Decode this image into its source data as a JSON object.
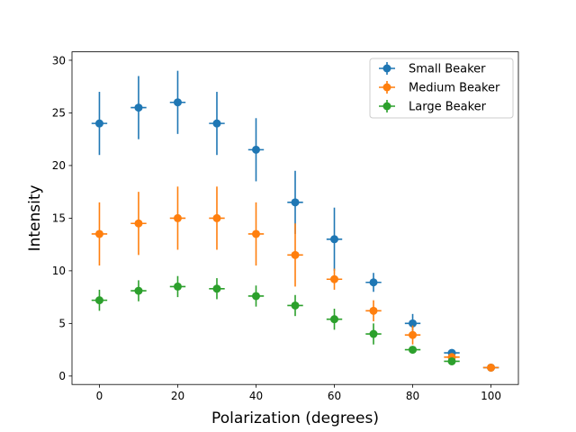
{
  "chart_data": {
    "type": "scatter",
    "xlabel": "Polarization (degrees)",
    "ylabel": "Intensity",
    "xlim": [
      -7,
      107
    ],
    "ylim": [
      -0.8,
      30.8
    ],
    "xticks": [
      0,
      20,
      40,
      60,
      80,
      100
    ],
    "yticks": [
      0,
      5,
      10,
      15,
      20,
      25,
      30
    ],
    "grid": false,
    "legend_position": "top-right",
    "x_error": 2,
    "series": [
      {
        "name": "Small Beaker",
        "color": "#1f77b4",
        "x": [
          0,
          10,
          20,
          30,
          40,
          50,
          60,
          70,
          80,
          90,
          100
        ],
        "y": [
          24,
          25.5,
          26,
          24,
          21.5,
          16.5,
          13,
          8.9,
          5,
          2.2,
          0.8
        ],
        "yerr": [
          3,
          3,
          3,
          3,
          3,
          3,
          3,
          0.9,
          0.9,
          0.2,
          0.1
        ]
      },
      {
        "name": "Medium Beaker",
        "color": "#ff7f0e",
        "x": [
          0,
          10,
          20,
          30,
          40,
          50,
          60,
          70,
          80,
          90,
          100
        ],
        "y": [
          13.5,
          14.5,
          15,
          15,
          13.5,
          11.5,
          9.2,
          6.2,
          3.9,
          1.8,
          0.8
        ],
        "yerr": [
          3,
          3,
          3,
          3,
          3,
          3,
          1,
          1,
          0.9,
          0.2,
          0.1
        ]
      },
      {
        "name": "Large Beaker",
        "color": "#2ca02c",
        "x": [
          0,
          10,
          20,
          30,
          40,
          50,
          60,
          70,
          80,
          90
        ],
        "y": [
          7.2,
          8.1,
          8.5,
          8.3,
          7.6,
          6.7,
          5.4,
          4,
          2.5,
          1.4
        ],
        "yerr": [
          1,
          1,
          1,
          1,
          1,
          1,
          1,
          1,
          0.2,
          0.2
        ]
      }
    ]
  }
}
